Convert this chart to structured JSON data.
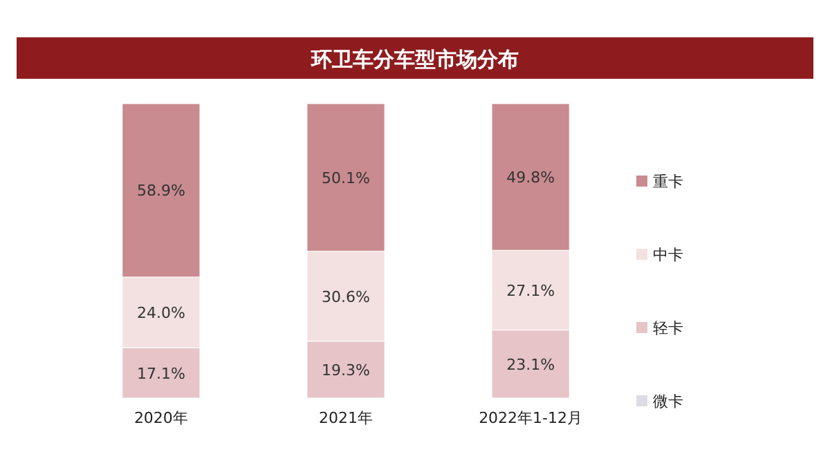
{
  "chart_data": {
    "type": "bar",
    "title": "环卫车分车型市场分布",
    "categories": [
      "2020年",
      "2021年",
      "2022年1-12月"
    ],
    "stacked": true,
    "legend": "right",
    "series": [
      {
        "name": "微卡",
        "color": "#dcdce4",
        "values": [
          0,
          0,
          0
        ],
        "value_labels": [
          null,
          null,
          null
        ]
      },
      {
        "name": "轻卡",
        "color": "#e6c4c8",
        "values": [
          17.1,
          19.3,
          23.1
        ],
        "value_labels": [
          "17.1%",
          "19.3%",
          "23.1%"
        ]
      },
      {
        "name": "中卡",
        "color": "#f3e1e1",
        "values": [
          24.0,
          30.6,
          27.1
        ],
        "value_labels": [
          "24.0%",
          "30.6%",
          "27.1%"
        ]
      },
      {
        "name": "重卡",
        "color": "#c98b8f",
        "values": [
          58.9,
          50.1,
          49.8
        ],
        "value_labels": [
          "58.9%",
          "50.1%",
          "49.8%"
        ]
      }
    ]
  }
}
